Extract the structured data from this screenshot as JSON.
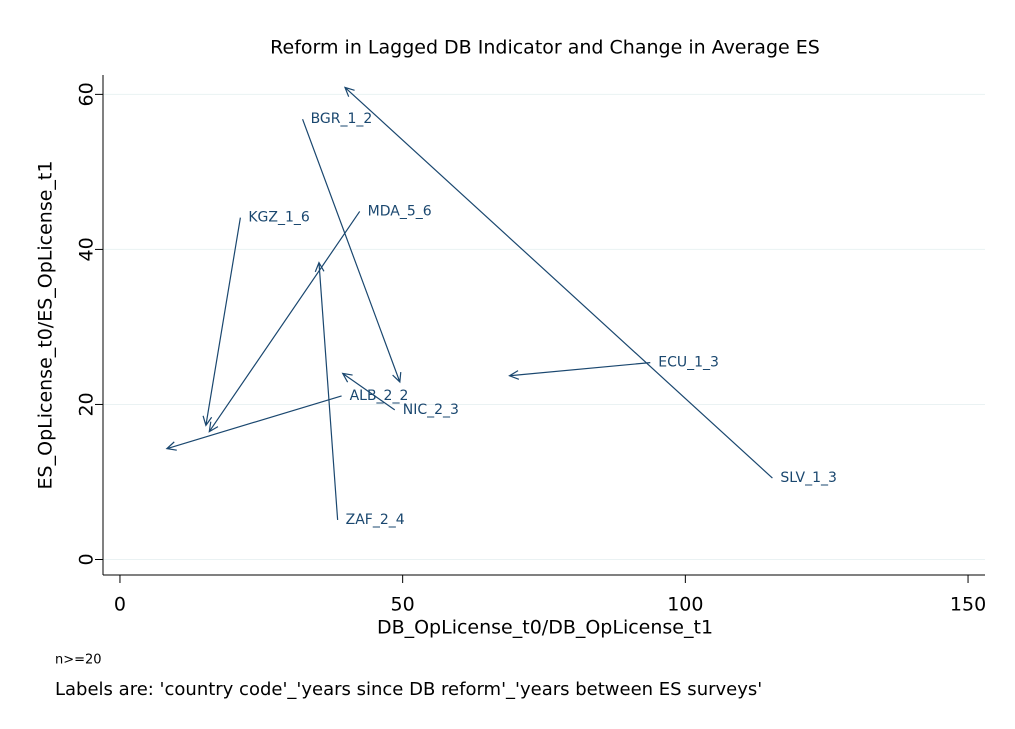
{
  "chart_data": {
    "type": "arrow",
    "title": "Reform in Lagged DB Indicator and Change in Average ES",
    "x_label": "DB_OpLicense_t0/DB_OpLicense_t1",
    "y_label": "ES_OpLicense_t0/ES_OpLicense_t1",
    "notes": [
      "n>=20",
      "Labels are: 'country code'_'years since DB reform'_'years between ES surveys'"
    ],
    "color": "#1a476f",
    "grid": true,
    "arrows": [
      {
        "label": "BGR_1_2",
        "x0": 32.3,
        "y0": 56.8,
        "x1": 49.5,
        "y1": 22.9
      },
      {
        "label": "SLV_1_3",
        "x0": 115.4,
        "y0": 10.5,
        "x1": 39.8,
        "y1": 60.9
      },
      {
        "label": "KGZ_1_6",
        "x0": 21.3,
        "y0": 44.1,
        "x1": 15.2,
        "y1": 17.3
      },
      {
        "label": "MDA_5_6",
        "x0": 42.4,
        "y0": 44.9,
        "x1": 15.8,
        "y1": 16.5
      },
      {
        "label": "ZAF_2_4",
        "x0": 38.5,
        "y0": 5.1,
        "x1": 35.2,
        "y1": 38.3
      },
      {
        "label": "ALB_2_2",
        "x0": 39.2,
        "y0": 21.1,
        "x1": 8.3,
        "y1": 14.3
      },
      {
        "label": "NIC_2_3",
        "x0": 48.6,
        "y0": 19.3,
        "x1": 39.4,
        "y1": 24.0
      },
      {
        "label": "ECU_1_3",
        "x0": 93.8,
        "y0": 25.4,
        "x1": 68.9,
        "y1": 23.7
      }
    ],
    "xlim": [
      -3,
      153
    ],
    "xticks": [
      0,
      50,
      100,
      150
    ],
    "ylim": [
      -2,
      62.5
    ],
    "yticks": [
      0,
      20,
      40,
      60
    ]
  }
}
